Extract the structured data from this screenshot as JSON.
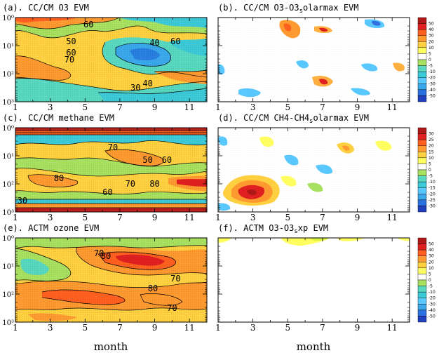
{
  "chart_data": [
    {
      "type": "heatmap",
      "panel": "a",
      "title": "(a). CC/CM O3 EVM",
      "xlabel": "",
      "ylabel": "",
      "xticks": [
        "1",
        "3",
        "5",
        "7",
        "9",
        "11"
      ],
      "yticks": [
        "10⁰",
        "10¹",
        "10²",
        "10³"
      ],
      "xlim": [
        1,
        12
      ],
      "contour_labels": [
        {
          "text": "60",
          "month": 5.2,
          "level": 0.3
        },
        {
          "text": "50",
          "month": 4.2,
          "level": 0.9
        },
        {
          "text": "60",
          "month": 4.2,
          "level": 1.3
        },
        {
          "text": "70",
          "month": 4.1,
          "level": 1.55
        },
        {
          "text": "40",
          "month": 9.0,
          "level": 0.95
        },
        {
          "text": "60",
          "month": 10.2,
          "level": 0.9
        },
        {
          "text": "30",
          "month": 7.9,
          "level": 2.55
        },
        {
          "text": "40",
          "month": 8.6,
          "level": 2.4
        }
      ],
      "colorbar": null
    },
    {
      "type": "heatmap",
      "panel": "b",
      "title": "(b). CC/CM O3-O3",
      "title_sub": "s",
      "title_rest": "olarmax EVM",
      "xticks": [
        "1",
        "3",
        "5",
        "7",
        "9",
        "11"
      ],
      "xlim": [
        1,
        12
      ],
      "colorbar": [
        "50",
        "40",
        "30",
        "20",
        "10",
        "5",
        "0",
        "-5",
        "-10",
        "-20",
        "-30",
        "-40",
        "-50"
      ]
    },
    {
      "type": "heatmap",
      "panel": "c",
      "title": "(c). CC/CM methane EVM",
      "xticks": [
        "1",
        "3",
        "5",
        "7",
        "9",
        "11"
      ],
      "yticks": [
        "10⁰",
        "10¹",
        "10²",
        "10³"
      ],
      "xlim": [
        1,
        12
      ],
      "contour_labels": [
        {
          "text": "70",
          "month": 6.6,
          "level": 0.75
        },
        {
          "text": "50",
          "month": 8.6,
          "level": 1.2
        },
        {
          "text": "60",
          "month": 9.7,
          "level": 1.2
        },
        {
          "text": "80",
          "month": 3.5,
          "level": 1.85
        },
        {
          "text": "70",
          "month": 7.6,
          "level": 2.05
        },
        {
          "text": "80",
          "month": 9.0,
          "level": 2.05
        },
        {
          "text": "60",
          "month": 6.3,
          "level": 2.35
        },
        {
          "text": "30",
          "month": 1.4,
          "level": 2.65
        }
      ],
      "colorbar": null
    },
    {
      "type": "heatmap",
      "panel": "d",
      "title": "(d). CC/CM CH4-CH4",
      "title_sub": "s",
      "title_rest": "olarmax EVM",
      "xticks": [
        "1",
        "3",
        "5",
        "7",
        "9",
        "11"
      ],
      "xlim": [
        1,
        12
      ],
      "colorbar": [
        "30",
        "25",
        "20",
        "15",
        "10",
        "5",
        "0",
        "-5",
        "-10",
        "-15",
        "-20",
        "-25",
        "-30"
      ]
    },
    {
      "type": "heatmap",
      "panel": "e",
      "title": "(e). ACTM ozone EVM",
      "xlabel": "month",
      "xticks": [
        "1",
        "3",
        "5",
        "7",
        "9",
        "11"
      ],
      "yticks": [
        "10⁰",
        "10¹",
        "10²",
        "10³"
      ],
      "xlim": [
        1,
        12
      ],
      "contour_labels": [
        {
          "text": "70",
          "month": 5.8,
          "level": 0.6
        },
        {
          "text": "80",
          "month": 6.2,
          "level": 0.7
        },
        {
          "text": "70",
          "month": 10.2,
          "level": 1.5
        },
        {
          "text": "80",
          "month": 8.9,
          "level": 1.85
        },
        {
          "text": "70",
          "month": 10.0,
          "level": 2.55
        }
      ],
      "colorbar": null
    },
    {
      "type": "heatmap",
      "panel": "f",
      "title": "(f). ACTM O3-O3",
      "title_sub": "s",
      "title_rest": "xp EVM",
      "xlabel": "month",
      "xticks": [
        "1",
        "3",
        "5",
        "7",
        "9",
        "11"
      ],
      "xlim": [
        1,
        12
      ],
      "colorbar": [
        "50",
        "40",
        "30",
        "20",
        "10",
        "5",
        "0",
        "-5",
        "-10",
        "-20",
        "-30",
        "-40",
        "-50"
      ]
    }
  ]
}
